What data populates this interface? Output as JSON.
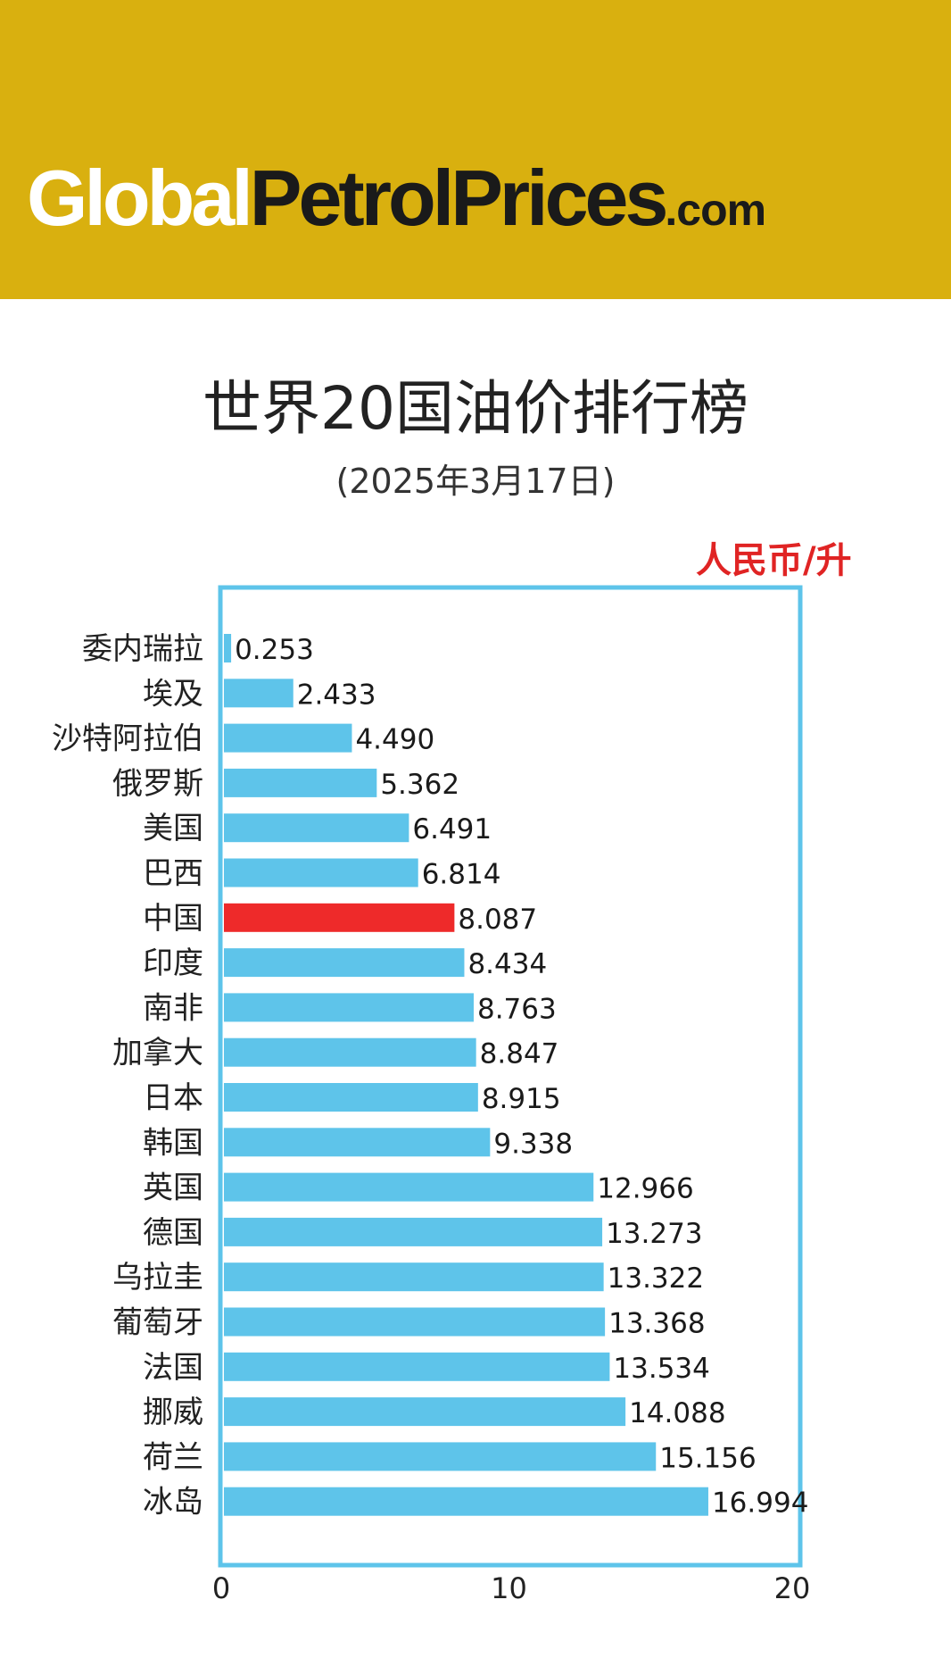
{
  "header": {
    "logo_part1": "Global",
    "logo_part2": "PetrolPrices",
    "logo_part3": ".com",
    "logo_part1_color": "#ffffff",
    "logo_part2_color": "#1a1a1a",
    "banner_color": "#d9b00f"
  },
  "chart_data": {
    "type": "bar",
    "orientation": "horizontal",
    "title": "世界20国油价排行榜",
    "subtitle": "(2025年3月17日)",
    "unit": "人民币/升",
    "categories": [
      "委内瑞拉",
      "埃及",
      "沙特阿拉伯",
      "俄罗斯",
      "美国",
      "巴西",
      "中国",
      "印度",
      "南非",
      "加拿大",
      "日本",
      "韩国",
      "英国",
      "德国",
      "乌拉圭",
      "葡萄牙",
      "法国",
      "挪威",
      "荷兰",
      "冰岛"
    ],
    "values": [
      0.253,
      2.433,
      4.49,
      5.362,
      6.491,
      6.814,
      8.087,
      8.434,
      8.763,
      8.847,
      8.915,
      9.338,
      12.966,
      13.273,
      13.322,
      13.368,
      13.534,
      14.088,
      15.156,
      16.994
    ],
    "value_labels": [
      "0.253",
      "2.433",
      "4.490",
      "5.362",
      "6.491",
      "6.814",
      "8.087",
      "8.434",
      "8.763",
      "8.847",
      "8.915",
      "9.338",
      "12.966",
      "13.273",
      "13.322",
      "13.368",
      "13.534",
      "14.088",
      "15.156",
      "16.994"
    ],
    "highlight_category": "中国",
    "xlim": [
      0,
      20
    ],
    "x_ticks": [
      0,
      10,
      20
    ],
    "grid": false,
    "colors": {
      "bar": "#5ec4ea",
      "highlight": "#ee2a2a",
      "frame": "#5ec4ea",
      "unit_text": "#e02424"
    }
  }
}
